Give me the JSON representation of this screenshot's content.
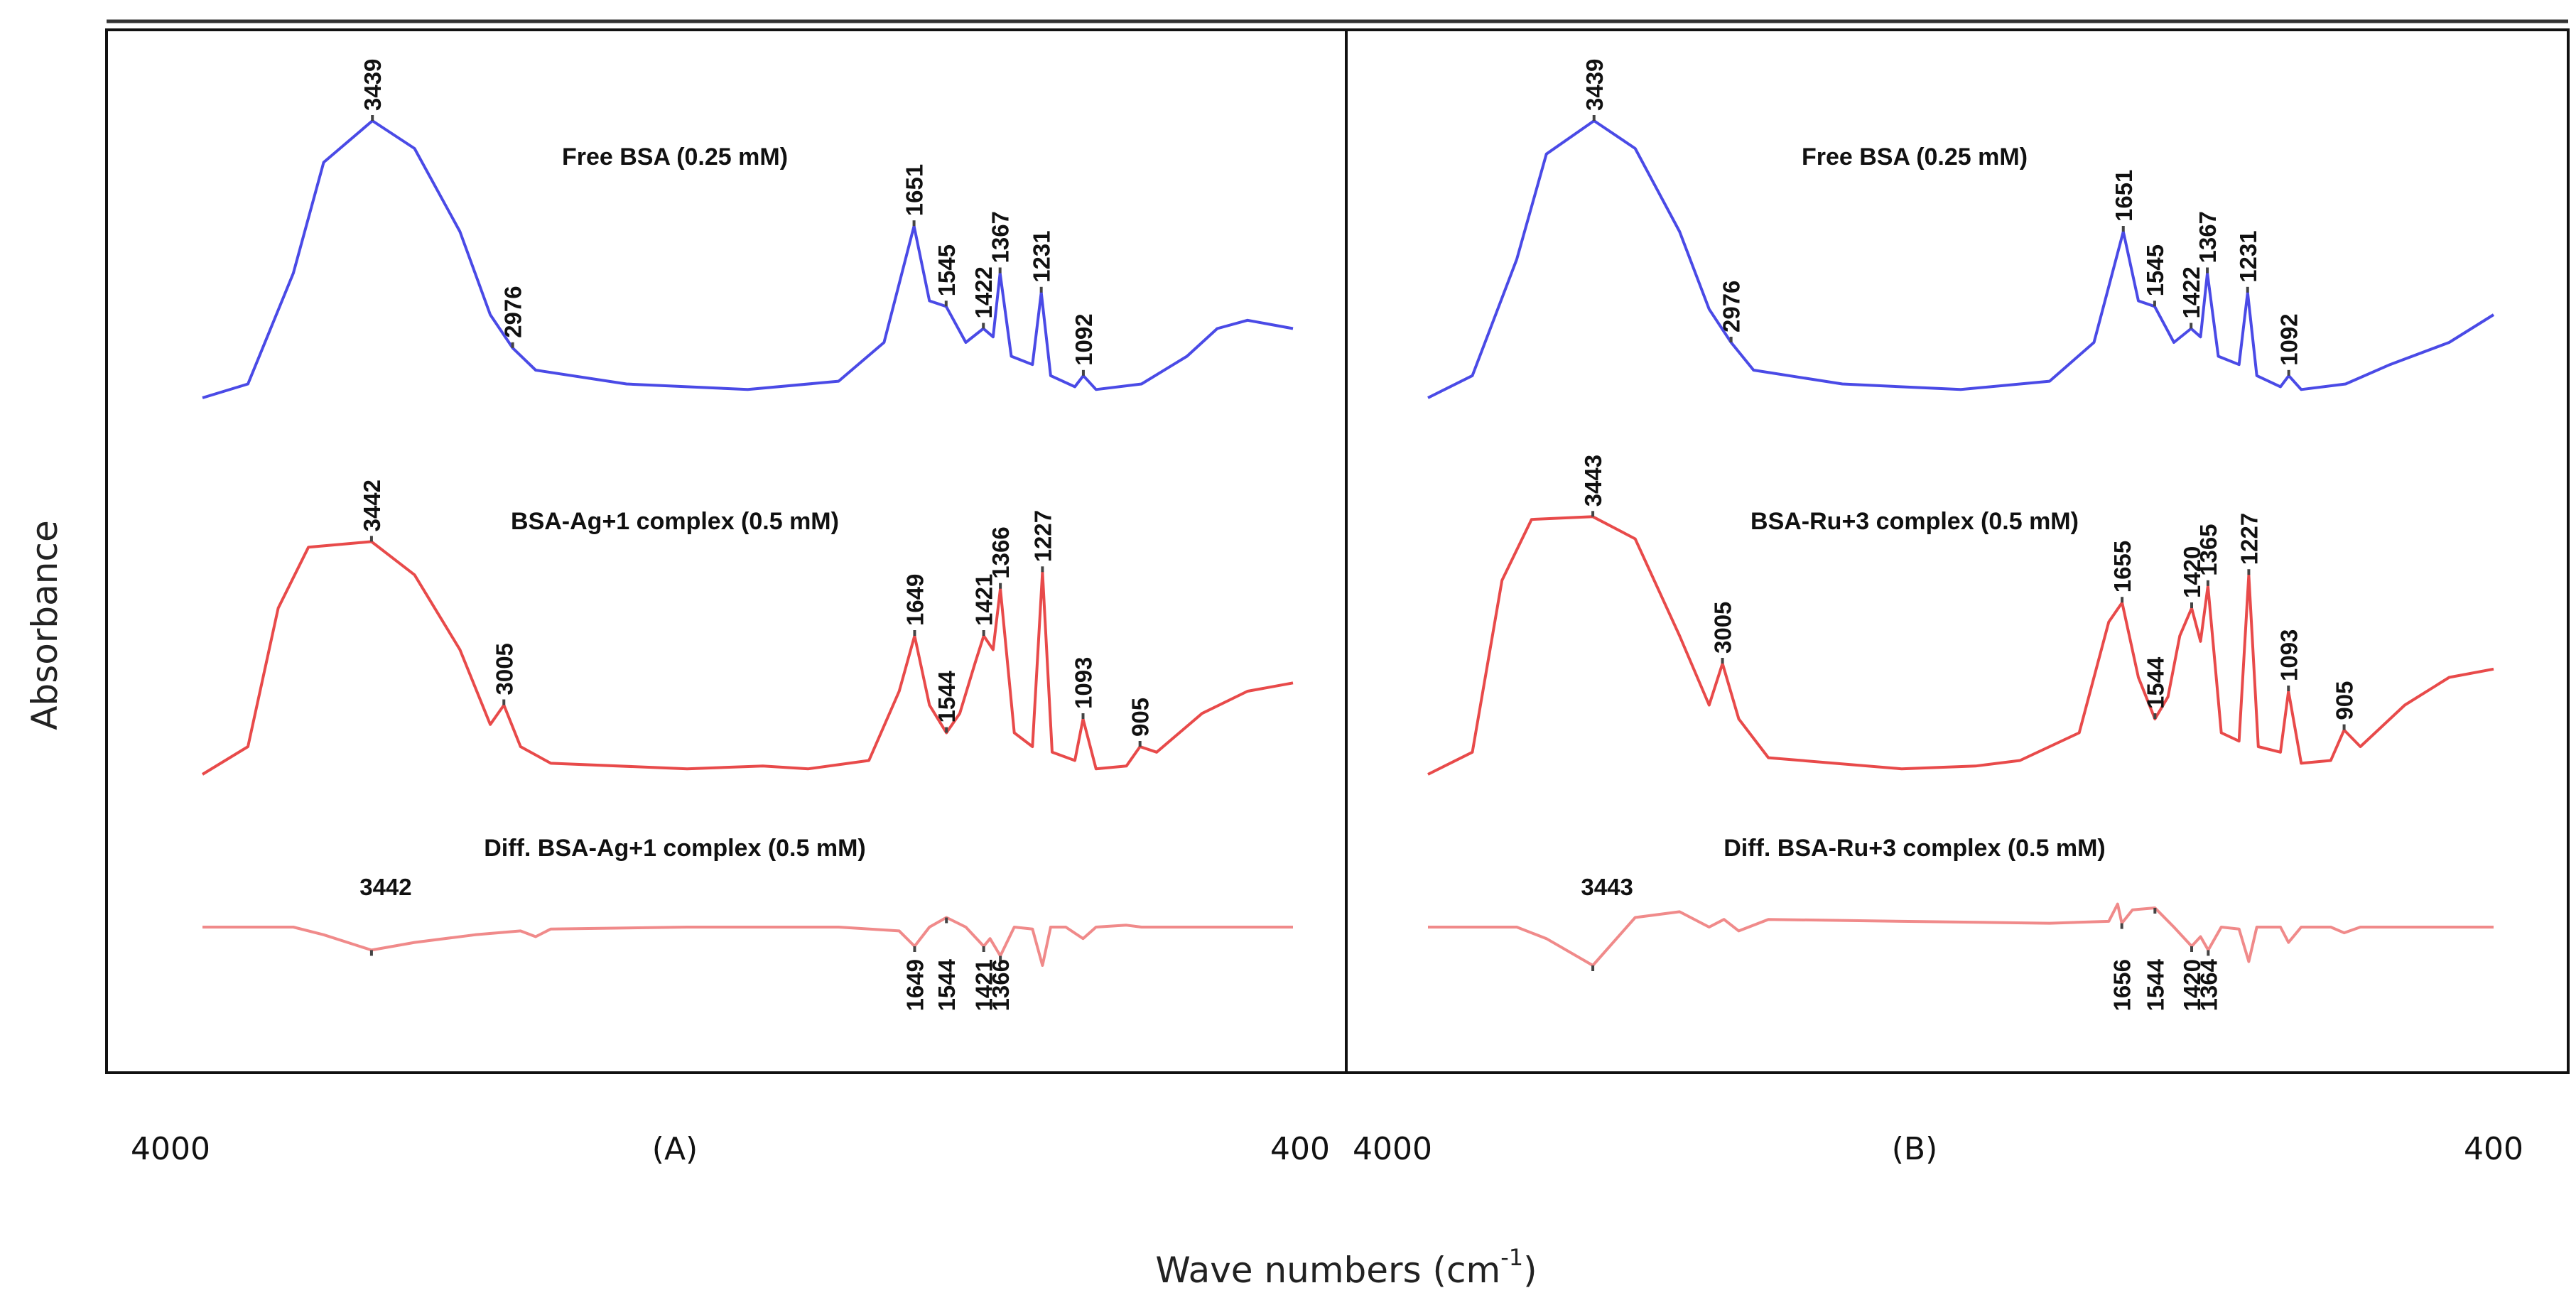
{
  "ylabel": "Absorbance",
  "xlabel": "Wave numbers (cm",
  "xlabel_sup": "-1",
  "xlabel_close": ")",
  "chart_data": [
    {
      "type": "line",
      "panel_label": "(A)",
      "x_range": [
        4000,
        400
      ],
      "x_ticks": [
        "4000",
        "400"
      ],
      "series": [
        {
          "name": "Free BSA (0.25 mM)",
          "color": "#4a4ae6",
          "points": [
            [
              4000,
              0.0
            ],
            [
              3850,
              0.05
            ],
            [
              3700,
              0.45
            ],
            [
              3600,
              0.85
            ],
            [
              3439,
              1.0
            ],
            [
              3300,
              0.9
            ],
            [
              3150,
              0.6
            ],
            [
              3050,
              0.3
            ],
            [
              2976,
              0.18
            ],
            [
              2900,
              0.1
            ],
            [
              2600,
              0.05
            ],
            [
              2200,
              0.03
            ],
            [
              1900,
              0.06
            ],
            [
              1750,
              0.2
            ],
            [
              1651,
              0.62
            ],
            [
              1600,
              0.35
            ],
            [
              1545,
              0.33
            ],
            [
              1480,
              0.2
            ],
            [
              1422,
              0.25
            ],
            [
              1390,
              0.22
            ],
            [
              1367,
              0.45
            ],
            [
              1330,
              0.15
            ],
            [
              1260,
              0.12
            ],
            [
              1231,
              0.38
            ],
            [
              1200,
              0.08
            ],
            [
              1120,
              0.04
            ],
            [
              1092,
              0.08
            ],
            [
              1050,
              0.03
            ],
            [
              900,
              0.05
            ],
            [
              750,
              0.15
            ],
            [
              650,
              0.25
            ],
            [
              550,
              0.28
            ],
            [
              400,
              0.25
            ]
          ],
          "peaks": [
            {
              "label": "3439",
              "x": 3439
            },
            {
              "label": "2976",
              "x": 2976
            },
            {
              "label": "1651",
              "x": 1651
            },
            {
              "label": "1545",
              "x": 1545
            },
            {
              "label": "1422",
              "x": 1422
            },
            {
              "label": "1367",
              "x": 1367
            },
            {
              "label": "1231",
              "x": 1231
            },
            {
              "label": "1092",
              "x": 1092
            }
          ]
        },
        {
          "name": "BSA-Ag+1 complex (0.5 mM)",
          "color": "#e84a4a",
          "points": [
            [
              4000,
              0.0
            ],
            [
              3850,
              0.1
            ],
            [
              3750,
              0.6
            ],
            [
              3650,
              0.82
            ],
            [
              3442,
              0.84
            ],
            [
              3300,
              0.72
            ],
            [
              3150,
              0.45
            ],
            [
              3050,
              0.18
            ],
            [
              3005,
              0.25
            ],
            [
              2950,
              0.1
            ],
            [
              2850,
              0.04
            ],
            [
              2400,
              0.02
            ],
            [
              2150,
              0.03
            ],
            [
              2000,
              0.02
            ],
            [
              1800,
              0.05
            ],
            [
              1700,
              0.3
            ],
            [
              1649,
              0.5
            ],
            [
              1600,
              0.25
            ],
            [
              1544,
              0.15
            ],
            [
              1500,
              0.22
            ],
            [
              1450,
              0.4
            ],
            [
              1421,
              0.5
            ],
            [
              1390,
              0.45
            ],
            [
              1366,
              0.67
            ],
            [
              1320,
              0.15
            ],
            [
              1260,
              0.1
            ],
            [
              1227,
              0.73
            ],
            [
              1195,
              0.08
            ],
            [
              1120,
              0.05
            ],
            [
              1093,
              0.2
            ],
            [
              1050,
              0.02
            ],
            [
              950,
              0.03
            ],
            [
              905,
              0.1
            ],
            [
              850,
              0.08
            ],
            [
              700,
              0.22
            ],
            [
              550,
              0.3
            ],
            [
              400,
              0.33
            ]
          ],
          "peaks": [
            {
              "label": "3442",
              "x": 3442
            },
            {
              "label": "3005",
              "x": 3005
            },
            {
              "label": "1649",
              "x": 1649
            },
            {
              "label": "1544",
              "x": 1544
            },
            {
              "label": "1421",
              "x": 1421
            },
            {
              "label": "1366",
              "x": 1366
            },
            {
              "label": "1227",
              "x": 1227
            },
            {
              "label": "1093",
              "x": 1093
            },
            {
              "label": "905",
              "x": 905
            }
          ]
        },
        {
          "name": "Diff. BSA-Ag+1 complex (0.5 mM)",
          "color": "#f08a8a",
          "points": [
            [
              4000,
              0.0
            ],
            [
              3700,
              0.0
            ],
            [
              3600,
              -0.04
            ],
            [
              3442,
              -0.12
            ],
            [
              3300,
              -0.08
            ],
            [
              3100,
              -0.04
            ],
            [
              2950,
              -0.02
            ],
            [
              2900,
              -0.05
            ],
            [
              2850,
              -0.01
            ],
            [
              2400,
              0.0
            ],
            [
              1900,
              0.0
            ],
            [
              1700,
              -0.02
            ],
            [
              1649,
              -0.1
            ],
            [
              1600,
              0.0
            ],
            [
              1544,
              0.05
            ],
            [
              1480,
              0.0
            ],
            [
              1421,
              -0.1
            ],
            [
              1400,
              -0.06
            ],
            [
              1366,
              -0.15
            ],
            [
              1320,
              0.0
            ],
            [
              1260,
              -0.01
            ],
            [
              1227,
              -0.2
            ],
            [
              1200,
              0.0
            ],
            [
              1150,
              0.0
            ],
            [
              1093,
              -0.06
            ],
            [
              1050,
              0.0
            ],
            [
              950,
              0.01
            ],
            [
              900,
              0.0
            ],
            [
              800,
              0.0
            ],
            [
              400,
              0.0
            ]
          ],
          "peaks": [
            {
              "label": "3442",
              "x": 3442
            },
            {
              "label": "1649",
              "x": 1649
            },
            {
              "label": "1544",
              "x": 1544
            },
            {
              "label": "1421",
              "x": 1421
            },
            {
              "label": "1366",
              "x": 1366
            }
          ]
        }
      ]
    },
    {
      "type": "line",
      "panel_label": "(B)",
      "x_range": [
        4000,
        400
      ],
      "x_ticks": [
        "4000",
        "400"
      ],
      "series": [
        {
          "name": "Free BSA (0.25 mM)",
          "color": "#4a4ae6",
          "points": [
            [
              4000,
              0.0
            ],
            [
              3850,
              0.08
            ],
            [
              3700,
              0.5
            ],
            [
              3600,
              0.88
            ],
            [
              3439,
              1.0
            ],
            [
              3300,
              0.9
            ],
            [
              3150,
              0.6
            ],
            [
              3050,
              0.32
            ],
            [
              2976,
              0.2
            ],
            [
              2900,
              0.1
            ],
            [
              2600,
              0.05
            ],
            [
              2200,
              0.03
            ],
            [
              1900,
              0.06
            ],
            [
              1750,
              0.2
            ],
            [
              1651,
              0.6
            ],
            [
              1600,
              0.35
            ],
            [
              1545,
              0.33
            ],
            [
              1480,
              0.2
            ],
            [
              1422,
              0.25
            ],
            [
              1390,
              0.22
            ],
            [
              1367,
              0.45
            ],
            [
              1330,
              0.15
            ],
            [
              1260,
              0.12
            ],
            [
              1231,
              0.38
            ],
            [
              1200,
              0.08
            ],
            [
              1120,
              0.04
            ],
            [
              1092,
              0.08
            ],
            [
              1050,
              0.03
            ],
            [
              900,
              0.05
            ],
            [
              750,
              0.12
            ],
            [
              550,
              0.2
            ],
            [
              400,
              0.3
            ]
          ],
          "peaks": [
            {
              "label": "3439",
              "x": 3439
            },
            {
              "label": "2976",
              "x": 2976
            },
            {
              "label": "1651",
              "x": 1651
            },
            {
              "label": "1545",
              "x": 1545
            },
            {
              "label": "1422",
              "x": 1422
            },
            {
              "label": "1367",
              "x": 1367
            },
            {
              "label": "1231",
              "x": 1231
            },
            {
              "label": "1092",
              "x": 1092
            }
          ]
        },
        {
          "name": "BSA-Ru+3 complex (0.5 mM)",
          "color": "#e84a4a",
          "points": [
            [
              4000,
              0.0
            ],
            [
              3850,
              0.08
            ],
            [
              3750,
              0.7
            ],
            [
              3650,
              0.92
            ],
            [
              3443,
              0.93
            ],
            [
              3300,
              0.85
            ],
            [
              3150,
              0.5
            ],
            [
              3050,
              0.25
            ],
            [
              3005,
              0.4
            ],
            [
              2950,
              0.2
            ],
            [
              2850,
              0.06
            ],
            [
              2400,
              0.02
            ],
            [
              2150,
              0.03
            ],
            [
              2000,
              0.05
            ],
            [
              1800,
              0.15
            ],
            [
              1700,
              0.55
            ],
            [
              1655,
              0.62
            ],
            [
              1600,
              0.35
            ],
            [
              1544,
              0.2
            ],
            [
              1500,
              0.28
            ],
            [
              1460,
              0.5
            ],
            [
              1420,
              0.6
            ],
            [
              1390,
              0.48
            ],
            [
              1365,
              0.68
            ],
            [
              1320,
              0.15
            ],
            [
              1260,
              0.12
            ],
            [
              1227,
              0.72
            ],
            [
              1195,
              0.1
            ],
            [
              1120,
              0.08
            ],
            [
              1093,
              0.3
            ],
            [
              1050,
              0.04
            ],
            [
              950,
              0.05
            ],
            [
              905,
              0.16
            ],
            [
              850,
              0.1
            ],
            [
              700,
              0.25
            ],
            [
              550,
              0.35
            ],
            [
              400,
              0.38
            ]
          ],
          "peaks": [
            {
              "label": "3443",
              "x": 3443
            },
            {
              "label": "3005",
              "x": 3005
            },
            {
              "label": "1655",
              "x": 1655
            },
            {
              "label": "1544",
              "x": 1544
            },
            {
              "label": "1420",
              "x": 1420
            },
            {
              "label": "1365",
              "x": 1365
            },
            {
              "label": "1227",
              "x": 1227
            },
            {
              "label": "1093",
              "x": 1093
            },
            {
              "label": "905",
              "x": 905
            }
          ]
        },
        {
          "name": "Diff. BSA-Ru+3 complex (0.5 mM)",
          "color": "#f08a8a",
          "points": [
            [
              4000,
              0.0
            ],
            [
              3700,
              0.0
            ],
            [
              3600,
              -0.06
            ],
            [
              3443,
              -0.2
            ],
            [
              3300,
              0.05
            ],
            [
              3150,
              0.08
            ],
            [
              3050,
              0.0
            ],
            [
              3000,
              0.04
            ],
            [
              2950,
              -0.02
            ],
            [
              2850,
              0.04
            ],
            [
              2400,
              0.03
            ],
            [
              1900,
              0.02
            ],
            [
              1700,
              0.03
            ],
            [
              1670,
              0.12
            ],
            [
              1656,
              0.02
            ],
            [
              1620,
              0.09
            ],
            [
              1544,
              0.1
            ],
            [
              1480,
              0.0
            ],
            [
              1420,
              -0.1
            ],
            [
              1390,
              -0.05
            ],
            [
              1364,
              -0.12
            ],
            [
              1320,
              0.0
            ],
            [
              1260,
              -0.01
            ],
            [
              1227,
              -0.18
            ],
            [
              1200,
              0.0
            ],
            [
              1120,
              0.0
            ],
            [
              1093,
              -0.08
            ],
            [
              1050,
              0.0
            ],
            [
              950,
              0.0
            ],
            [
              905,
              -0.03
            ],
            [
              850,
              0.0
            ],
            [
              400,
              0.0
            ]
          ],
          "peaks": [
            {
              "label": "3443",
              "x": 3443
            },
            {
              "label": "1656",
              "x": 1656
            },
            {
              "label": "1544",
              "x": 1544
            },
            {
              "label": "1420",
              "x": 1420
            },
            {
              "label": "1364",
              "x": 1364
            }
          ]
        }
      ]
    }
  ]
}
